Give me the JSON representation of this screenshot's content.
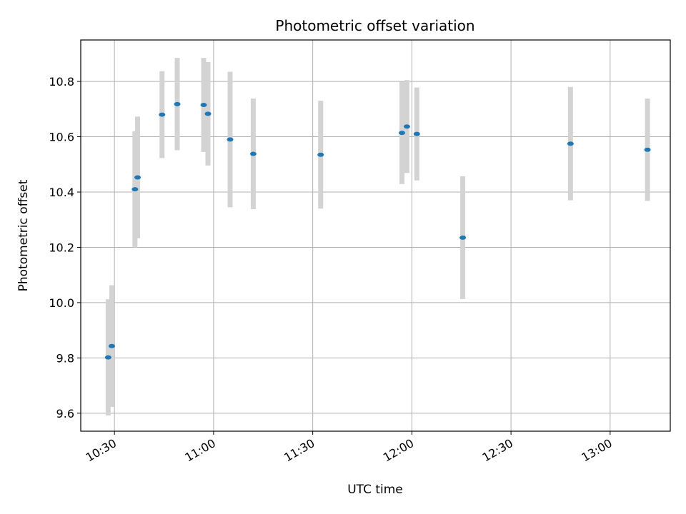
{
  "chart_data": {
    "type": "scatter",
    "title": "Photometric offset variation",
    "xlabel": "UTC time",
    "ylabel": "Photometric offset",
    "x_ticks": [
      "10:30",
      "11:00",
      "11:30",
      "12:00",
      "12:30",
      "13:00"
    ],
    "y_ticks": [
      "9.6",
      "9.8",
      "10.0",
      "10.2",
      "10.4",
      "10.6",
      "10.8"
    ],
    "xlim": [
      "10:19.8",
      "13:18.2"
    ],
    "ylim": [
      9.535,
      10.95
    ],
    "grid": true,
    "colors": {
      "points": "#1f77b4",
      "errorbars": "#d3d3d3",
      "grid": "#b0b0b0"
    },
    "series": [
      {
        "points": [
          {
            "time": "10:28.1",
            "offset": 9.802,
            "error": 0.21
          },
          {
            "time": "10:29.2",
            "offset": 9.843,
            "error": 0.22
          },
          {
            "time": "10:36.2",
            "offset": 10.41,
            "error": 0.21
          },
          {
            "time": "10:37.0",
            "offset": 10.453,
            "error": 0.22
          },
          {
            "time": "10:44.4",
            "offset": 10.68,
            "error": 0.157
          },
          {
            "time": "10:49.0",
            "offset": 10.718,
            "error": 0.167
          },
          {
            "time": "10:57.0",
            "offset": 10.715,
            "error": 0.17
          },
          {
            "time": "10:58.3",
            "offset": 10.683,
            "error": 0.187
          },
          {
            "time": "11:05.0",
            "offset": 10.59,
            "error": 0.245
          },
          {
            "time": "11:12.0",
            "offset": 10.538,
            "error": 0.2
          },
          {
            "time": "11:32.4",
            "offset": 10.535,
            "error": 0.195
          },
          {
            "time": "11:57.0",
            "offset": 10.614,
            "error": 0.185
          },
          {
            "time": "11:58.5",
            "offset": 10.637,
            "error": 0.168
          },
          {
            "time": "12:01.5",
            "offset": 10.61,
            "error": 0.168
          },
          {
            "time": "12:15.4",
            "offset": 10.235,
            "error": 0.222
          },
          {
            "time": "12:48.0",
            "offset": 10.575,
            "error": 0.205
          },
          {
            "time": "13:11.3",
            "offset": 10.553,
            "error": 0.185
          }
        ]
      }
    ]
  }
}
